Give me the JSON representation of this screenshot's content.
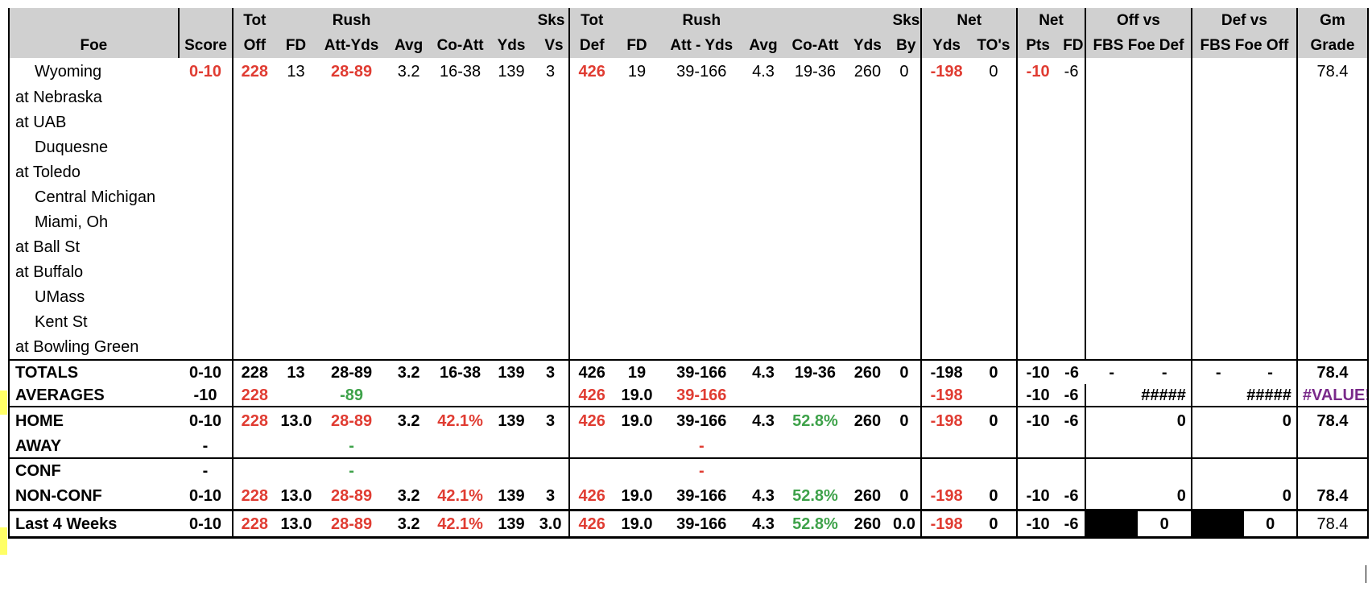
{
  "header": {
    "row1": [
      "",
      "",
      "Tot",
      "",
      "Rush",
      "",
      "",
      "",
      "Sks",
      "Tot",
      "",
      "Rush",
      "",
      "",
      "",
      "Sks",
      "Net",
      "",
      "Net",
      "",
      "Off vs",
      "Def vs",
      "Gm"
    ],
    "row2": [
      "Foe",
      "Score",
      "Off",
      "FD",
      "Att-Yds",
      "Avg",
      "Co-Att",
      "Yds",
      "Vs",
      "Def",
      "FD",
      "Att - Yds",
      "Avg",
      "Co-Att",
      "Yds",
      "By",
      "Yds",
      "TO's",
      "Pts",
      "FD",
      "FBS Foe Def",
      "FBS Foe Off",
      "Grade"
    ]
  },
  "games": [
    {
      "foe": "Wyoming",
      "home": true,
      "score": "0-10",
      "tot_off": "228",
      "fd": "13",
      "rush": "28-89",
      "avg": "3.2",
      "co_att": "16-38",
      "yds": "139",
      "sks_vs": "3",
      "tot_def": "426",
      "dfd": "19",
      "drush": "39-166",
      "davg": "4.3",
      "dco_att": "19-36",
      "dyds": "260",
      "sks_by": "0",
      "net_yds": "-198",
      "tos": "0",
      "net_pts": "-10",
      "net_fd": "-6",
      "off_vs": "",
      "def_vs": "",
      "grade": "78.4"
    },
    {
      "foe": "at Nebraska",
      "home": false
    },
    {
      "foe": "at UAB",
      "home": false
    },
    {
      "foe": "Duquesne",
      "home": true
    },
    {
      "foe": "at Toledo",
      "home": false
    },
    {
      "foe": "Central Michigan",
      "home": true
    },
    {
      "foe": "Miami, Oh",
      "home": true
    },
    {
      "foe": "at Ball St",
      "home": false
    },
    {
      "foe": "at Buffalo",
      "home": false
    },
    {
      "foe": "UMass",
      "home": true
    },
    {
      "foe": "Kent St",
      "home": true
    },
    {
      "foe": "at Bowling Green",
      "home": false
    }
  ],
  "totals": {
    "label": "TOTALS",
    "score": "0-10",
    "tot_off": "228",
    "fd": "13",
    "rush": "28-89",
    "avg": "3.2",
    "co_att": "16-38",
    "yds": "139",
    "sks_vs": "3",
    "tot_def": "426",
    "dfd": "19",
    "drush": "39-166",
    "davg": "4.3",
    "dco_att": "19-36",
    "dyds": "260",
    "sks_by": "0",
    "net_yds": "-198",
    "tos": "0",
    "net_pts": "-10",
    "net_fd": "-6",
    "off_a": "-",
    "off_b": "-",
    "def_a": "-",
    "def_b": "-",
    "grade": "78.4"
  },
  "averages": {
    "label": "AVERAGES",
    "score": "-10",
    "tot_off": "228",
    "rush": "-89",
    "tot_def": "426",
    "dfd": "19.0",
    "drush": "39-166",
    "net_yds": "-198",
    "net_pts": "-10",
    "net_fd": "-6",
    "off_vs": "#####",
    "def_vs": "#####",
    "grade": "#VALUE!"
  },
  "home_row": {
    "label": "HOME",
    "score": "0-10",
    "tot_off": "228",
    "fd": "13.0",
    "rush": "28-89",
    "avg": "3.2",
    "co_att": "42.1%",
    "yds": "139",
    "sks_vs": "3",
    "tot_def": "426",
    "dfd": "19.0",
    "drush": "39-166",
    "davg": "4.3",
    "dco_att": "52.8%",
    "dyds": "260",
    "sks_by": "0",
    "net_yds": "-198",
    "tos": "0",
    "net_pts": "-10",
    "net_fd": "-6",
    "off_vs": "0",
    "def_vs": "0",
    "grade": "78.4"
  },
  "away_row": {
    "label": "AWAY",
    "score": "-",
    "rush": "-",
    "drush": "-"
  },
  "conf_row": {
    "label": "CONF",
    "score": "-",
    "rush": "-",
    "drush": "-"
  },
  "nonconf_row": {
    "label": "NON-CONF",
    "score": "0-10",
    "tot_off": "228",
    "fd": "13.0",
    "rush": "28-89",
    "avg": "3.2",
    "co_att": "42.1%",
    "yds": "139",
    "sks_vs": "3",
    "tot_def": "426",
    "dfd": "19.0",
    "drush": "39-166",
    "davg": "4.3",
    "dco_att": "52.8%",
    "dyds": "260",
    "sks_by": "0",
    "net_yds": "-198",
    "tos": "0",
    "net_pts": "-10",
    "net_fd": "-6",
    "off_vs": "0",
    "def_vs": "0",
    "grade": "78.4"
  },
  "last4": {
    "label": "Last 4 Weeks",
    "score": "0-10",
    "tot_off": "228",
    "fd": "13.0",
    "rush": "28-89",
    "avg": "3.2",
    "co_att": "42.1%",
    "yds": "139",
    "sks_vs": "3.0",
    "tot_def": "426",
    "dfd": "19.0",
    "drush": "39-166",
    "davg": "4.3",
    "dco_att": "52.8%",
    "dyds": "260",
    "sks_by": "0.0",
    "net_yds": "-198",
    "tos": "0",
    "net_pts": "-10",
    "net_fd": "-6",
    "off_vs": "0",
    "def_vs": "0",
    "grade": "78.4"
  },
  "colors": {
    "header_bg": "#d0d0d0",
    "red": "#e03c32",
    "green": "#3ea24a",
    "purple": "#7a2a8a",
    "yellow_mark": "#ffff66"
  }
}
